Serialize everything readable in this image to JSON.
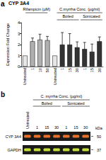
{
  "chart_data": {
    "type": "bar",
    "panel_label": "a",
    "title": "CYP 3A4",
    "y_label": "Expression Fold Change",
    "categories": [
      "Untreated",
      "1",
      "10",
      "50",
      "Untreated",
      "1",
      "15",
      "30",
      "1",
      "15",
      "30"
    ],
    "values": [
      1.0,
      2.3,
      2.45,
      2.4,
      1.0,
      2.0,
      2.0,
      1.75,
      1.6,
      1.35,
      2.3
    ],
    "errors": [
      null,
      0.3,
      0.5,
      0.35,
      null,
      1.1,
      1.0,
      0.5,
      0.6,
      0.7,
      0.4
    ],
    "colors": [
      "#e6e6e6",
      "#b0b0b0",
      "#b0b0b0",
      "#b0b0b0",
      "#e6e6e6",
      "#333333",
      "#333333",
      "#333333",
      "#333333",
      "#333333",
      "#333333"
    ],
    "ylim": [
      0,
      4
    ],
    "yticks": [
      0,
      1,
      2,
      3,
      4
    ],
    "grid": false,
    "groups": [
      {
        "label": "Rifampicin (µM)",
        "from": 1,
        "to": 3
      },
      {
        "label": "C.myrrha Conc. (µg/ml)",
        "from": 5,
        "to": 10
      },
      {
        "label": "Boiled",
        "from": 5,
        "to": 7
      },
      {
        "label": "Sonicated",
        "from": 8,
        "to": 10
      }
    ]
  },
  "blot": {
    "panel_label": "b",
    "header": {
      "label": "C. myrrha Conc. (µg/ml)",
      "from": 1,
      "to": 6
    },
    "groups": [
      {
        "label": "Boiled",
        "from": 1,
        "to": 3
      },
      {
        "label": "Sonicated",
        "from": 4,
        "to": 6
      }
    ],
    "lanes": [
      "Untreated",
      "1",
      "15",
      "30",
      "1",
      "15",
      "30"
    ],
    "unit": "kDa",
    "rows": [
      {
        "label": "CYP 3A4",
        "kDa": 50,
        "band_color": "#e8702a"
      },
      {
        "label": "GAPDH",
        "kDa": 37,
        "band_color": "#c8e03c"
      }
    ]
  }
}
